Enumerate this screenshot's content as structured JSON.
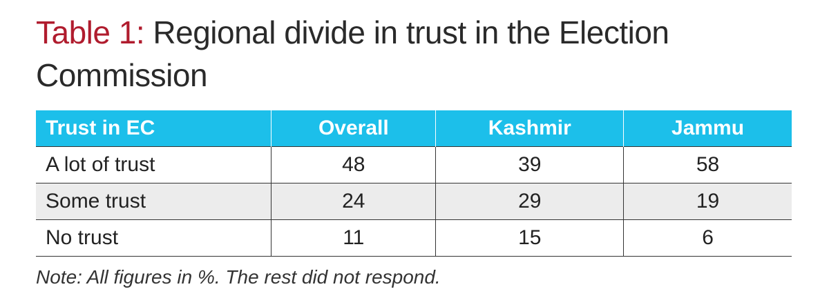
{
  "header": {
    "label": "Table 1:",
    "title": "Regional divide in trust in the Election Commission"
  },
  "table": {
    "columns": [
      "Trust in EC",
      "Overall",
      "Kashmir",
      "Jammu"
    ],
    "rows": [
      [
        "A lot of trust",
        48,
        39,
        58
      ],
      [
        "Some trust",
        24,
        29,
        19
      ],
      [
        "No trust",
        11,
        15,
        6
      ]
    ]
  },
  "note": "Note: All figures in %. The rest did not respond."
}
